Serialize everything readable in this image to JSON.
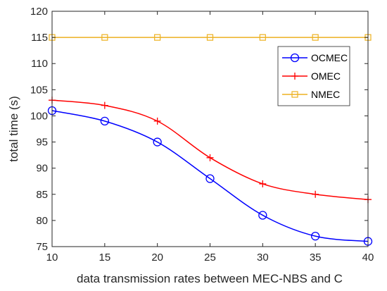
{
  "chart_data": {
    "type": "line",
    "xlabel": "data transmission rates between MEC-NBS and C",
    "ylabel": "total time (s)",
    "xlim": [
      10,
      40
    ],
    "ylim": [
      75,
      120
    ],
    "x_ticks": [
      "10",
      "15",
      "20",
      "25",
      "30",
      "35",
      "40"
    ],
    "y_ticks": [
      "75",
      "80",
      "85",
      "90",
      "95",
      "100",
      "105",
      "110",
      "115",
      "120"
    ],
    "x": [
      10,
      15,
      20,
      25,
      30,
      35,
      40
    ],
    "legend_placement": "top-right",
    "grid": false,
    "series": [
      {
        "name": "OCMEC",
        "color": "#0000ff",
        "marker": "circle",
        "values": [
          101,
          99,
          95,
          88,
          81,
          77,
          76
        ]
      },
      {
        "name": "OMEC",
        "color": "#ff0000",
        "marker": "plus",
        "values": [
          103,
          102,
          99,
          92,
          87,
          85,
          84
        ]
      },
      {
        "name": "NMEC",
        "color": "#edb120",
        "marker": "square",
        "values": [
          115,
          115,
          115,
          115,
          115,
          115,
          115
        ]
      }
    ]
  }
}
